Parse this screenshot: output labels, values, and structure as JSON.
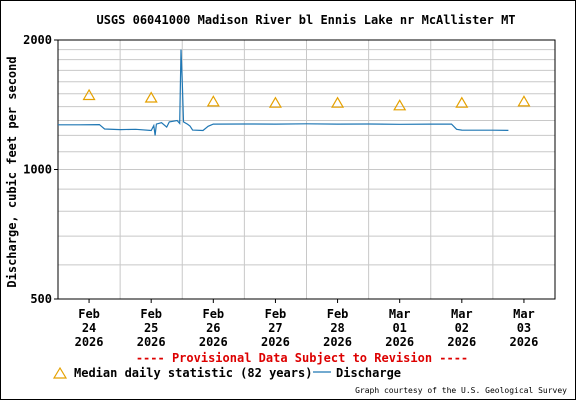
{
  "chart_data": {
    "type": "line",
    "title": "USGS 06041000 Madison River bl Ennis Lake nr McAllister MT",
    "ylabel": "Discharge, cubic feet per second",
    "yscale": "log",
    "ylim": [
      500,
      2000
    ],
    "y_ticks": [
      {
        "value": 500,
        "label": "500"
      },
      {
        "value": 1000,
        "label": "1000"
      },
      {
        "value": 2000,
        "label": "2000"
      }
    ],
    "x_range": [
      "2026-02-23T12:00",
      "2026-03-03T12:00"
    ],
    "x_ticks": [
      {
        "date": "2026-02-24",
        "month": "Feb",
        "day": "24",
        "year": "2026"
      },
      {
        "date": "2026-02-25",
        "month": "Feb",
        "day": "25",
        "year": "2026"
      },
      {
        "date": "2026-02-26",
        "month": "Feb",
        "day": "26",
        "year": "2026"
      },
      {
        "date": "2026-02-27",
        "month": "Feb",
        "day": "27",
        "year": "2026"
      },
      {
        "date": "2026-02-28",
        "month": "Feb",
        "day": "28",
        "year": "2026"
      },
      {
        "date": "2026-03-01",
        "month": "Mar",
        "day": "01",
        "year": "2026"
      },
      {
        "date": "2026-03-02",
        "month": "Mar",
        "day": "02",
        "year": "2026"
      },
      {
        "date": "2026-03-03",
        "month": "Mar",
        "day": "03",
        "year": "2026"
      }
    ],
    "grid": true,
    "legend_position": "bottom",
    "series": [
      {
        "name": "Median daily statistic (82 years)",
        "kind": "marker",
        "marker": "triangle",
        "color": "#e5a100",
        "points": [
          {
            "x": "2026-02-24",
            "y": 1490
          },
          {
            "x": "2026-02-25",
            "y": 1470
          },
          {
            "x": "2026-02-26",
            "y": 1440
          },
          {
            "x": "2026-02-27",
            "y": 1430
          },
          {
            "x": "2026-02-28",
            "y": 1430
          },
          {
            "x": "2026-03-01",
            "y": 1410
          },
          {
            "x": "2026-03-02",
            "y": 1430
          },
          {
            "x": "2026-03-03",
            "y": 1440
          }
        ]
      },
      {
        "name": "Discharge",
        "kind": "line",
        "color": "#1f77b4",
        "points": [
          {
            "x": "2026-02-23T12:00",
            "y": 1270
          },
          {
            "x": "2026-02-23T20:00",
            "y": 1270
          },
          {
            "x": "2026-02-24T04:00",
            "y": 1272
          },
          {
            "x": "2026-02-24T06:00",
            "y": 1242
          },
          {
            "x": "2026-02-24T12:00",
            "y": 1238
          },
          {
            "x": "2026-02-24T18:00",
            "y": 1240
          },
          {
            "x": "2026-02-25T00:00",
            "y": 1232
          },
          {
            "x": "2026-02-25T01:00",
            "y": 1265
          },
          {
            "x": "2026-02-25T01:30",
            "y": 1200
          },
          {
            "x": "2026-02-25T02:00",
            "y": 1275
          },
          {
            "x": "2026-02-25T04:00",
            "y": 1285
          },
          {
            "x": "2026-02-25T06:00",
            "y": 1255
          },
          {
            "x": "2026-02-25T07:00",
            "y": 1290
          },
          {
            "x": "2026-02-25T10:00",
            "y": 1300
          },
          {
            "x": "2026-02-25T11:00",
            "y": 1280
          },
          {
            "x": "2026-02-25T11:30",
            "y": 1900
          },
          {
            "x": "2026-02-25T12:00",
            "y": 1590
          },
          {
            "x": "2026-02-25T12:30",
            "y": 1290
          },
          {
            "x": "2026-02-25T14:00",
            "y": 1275
          },
          {
            "x": "2026-02-25T15:00",
            "y": 1262
          },
          {
            "x": "2026-02-25T16:00",
            "y": 1235
          },
          {
            "x": "2026-02-25T20:00",
            "y": 1232
          },
          {
            "x": "2026-02-25T22:00",
            "y": 1260
          },
          {
            "x": "2026-02-26T00:00",
            "y": 1275
          },
          {
            "x": "2026-02-26T12:00",
            "y": 1276
          },
          {
            "x": "2026-02-27T00:00",
            "y": 1275
          },
          {
            "x": "2026-02-27T12:00",
            "y": 1277
          },
          {
            "x": "2026-02-28T00:00",
            "y": 1275
          },
          {
            "x": "2026-02-28T12:00",
            "y": 1276
          },
          {
            "x": "2026-03-01T00:00",
            "y": 1274
          },
          {
            "x": "2026-03-01T12:00",
            "y": 1275
          },
          {
            "x": "2026-03-01T20:00",
            "y": 1275
          },
          {
            "x": "2026-03-01T22:00",
            "y": 1240
          },
          {
            "x": "2026-03-02T00:00",
            "y": 1235
          },
          {
            "x": "2026-03-02T12:00",
            "y": 1234
          },
          {
            "x": "2026-03-02T18:00",
            "y": 1233
          }
        ]
      }
    ]
  },
  "page": {
    "provisional_notice": "---- Provisional Data Subject to Revision ----",
    "credit": "Graph courtesy of the U.S. Geological Survey",
    "notice_color": "#dd0000"
  }
}
